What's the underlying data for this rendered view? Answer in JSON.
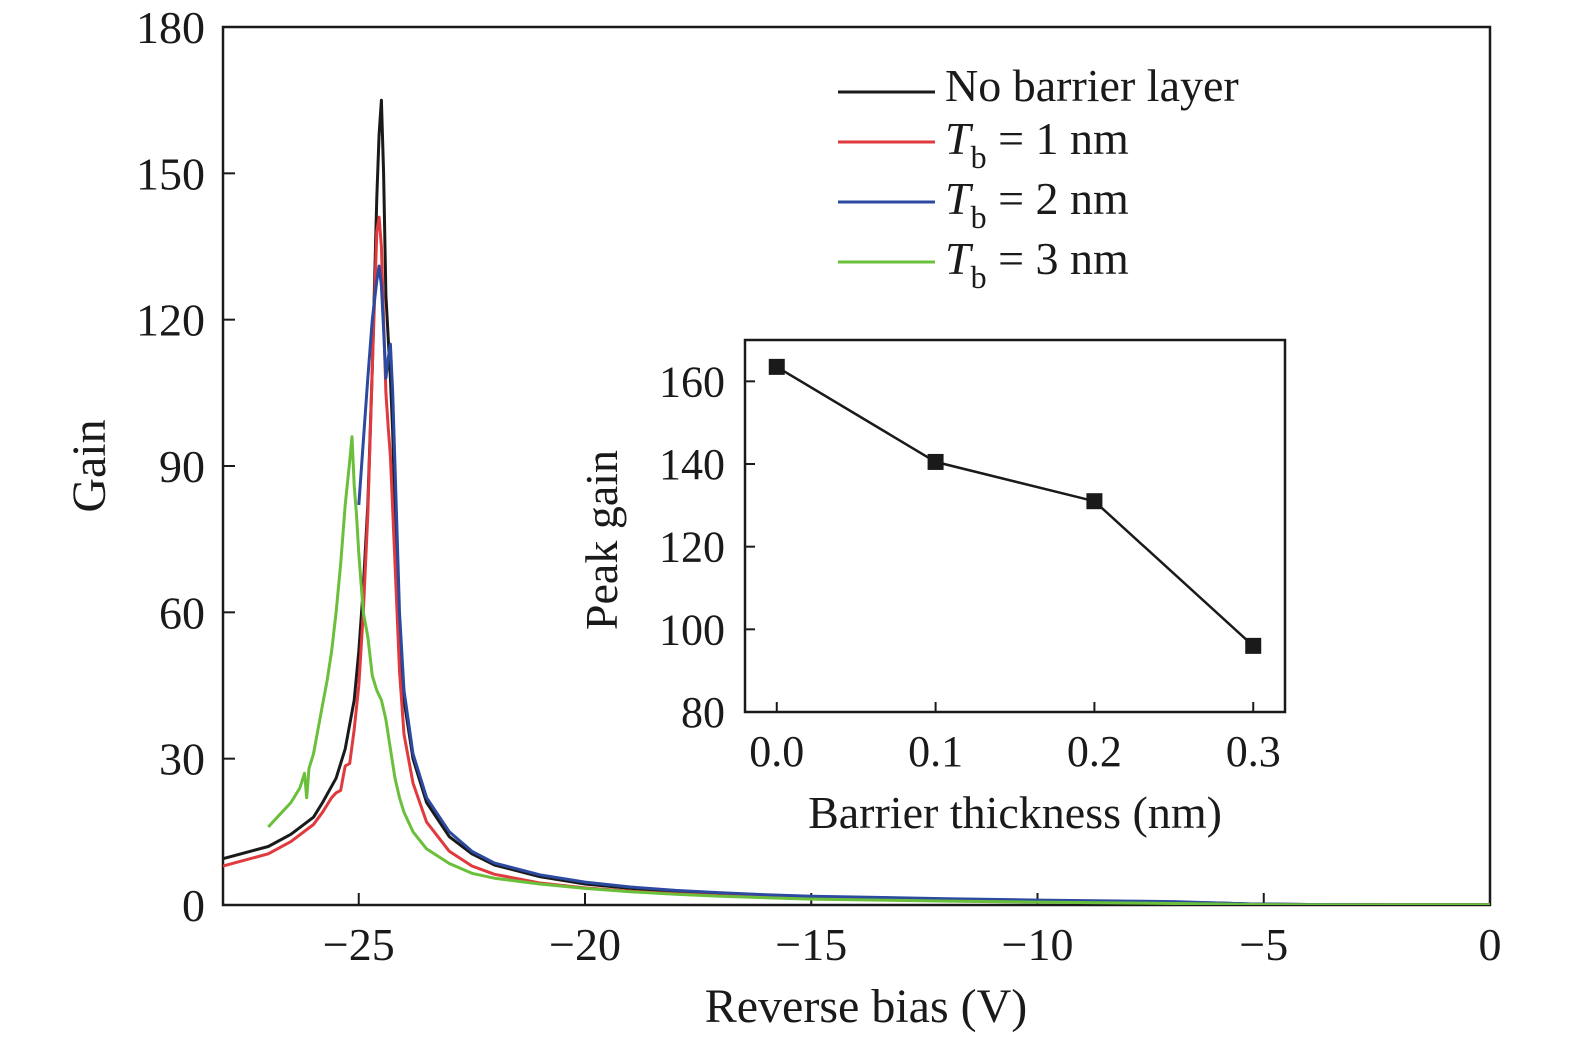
{
  "chart_data": [
    {
      "type": "line",
      "xlabel": "Reverse bias (V)",
      "ylabel": "Gain",
      "xlim": [
        -28,
        0
      ],
      "ylim": [
        0,
        180
      ],
      "xticks": [
        -25,
        -20,
        -15,
        -10,
        -5,
        0
      ],
      "xtick_labels": [
        "−25",
        "−20",
        "−15",
        "−10",
        "−5",
        "0"
      ],
      "yticks": [
        0,
        30,
        60,
        90,
        120,
        150,
        180
      ],
      "ytick_labels": [
        "0",
        "30",
        "60",
        "90",
        "120",
        "150",
        "180"
      ],
      "legend_position": "top-right",
      "series": [
        {
          "name": "No barrier layer",
          "color": "#1a1a1a",
          "x": [
            -28,
            -27,
            -26.5,
            -26,
            -25.8,
            -25.5,
            -25.3,
            -25.1,
            -25,
            -24.9,
            -24.8,
            -24.7,
            -24.6,
            -24.55,
            -24.5,
            -24.45,
            -24.4,
            -24.3,
            -24.25,
            -24.2,
            -24.1,
            -24,
            -23.8,
            -23.5,
            -23,
            -22.5,
            -22,
            -21,
            -20,
            -19,
            -18,
            -17,
            -16,
            -15,
            -12,
            -10,
            -8,
            -6,
            -5.3,
            -4,
            -2,
            0
          ],
          "y": [
            9.5,
            12,
            14.5,
            18,
            21,
            26,
            32,
            42,
            52,
            65,
            82,
            110,
            145,
            158,
            165,
            150,
            125,
            108,
            97,
            80,
            55,
            42,
            30,
            21,
            14,
            10.5,
            8.2,
            5.8,
            4.3,
            3.4,
            2.8,
            2.3,
            1.9,
            1.6,
            1.1,
            0.8,
            0.6,
            0.4,
            0.2,
            0.1,
            0.05,
            0.05
          ],
          "labels": {
            "name": "No barrier layer"
          }
        },
        {
          "name": "T_b = 1 nm",
          "color": "#e03a3e",
          "x": [
            -28,
            -27,
            -26.5,
            -26,
            -25.8,
            -25.6,
            -25.5,
            -25.4,
            -25.35,
            -25.3,
            -25.2,
            -25.1,
            -25,
            -24.9,
            -24.8,
            -24.7,
            -24.6,
            -24.55,
            -24.5,
            -24.45,
            -24.4,
            -24.35,
            -24.3,
            -24.2,
            -24.1,
            -24,
            -23.8,
            -23.5,
            -23,
            -22.5,
            -22,
            -21,
            -20,
            -19,
            -18,
            -17,
            -16,
            -15,
            -12,
            -10,
            -8,
            -6,
            -5.3,
            -4,
            -2,
            0
          ],
          "y": [
            8,
            10.5,
            13,
            16.5,
            19,
            22,
            23,
            23.5,
            26,
            28.5,
            29,
            36,
            45,
            60,
            80,
            110,
            138,
            141,
            135,
            120,
            105,
            98,
            92,
            70,
            48,
            35,
            25,
            17,
            11,
            8,
            6.3,
            4.5,
            3.5,
            2.8,
            2.3,
            1.9,
            1.6,
            1.3,
            0.9,
            0.7,
            0.5,
            0.3,
            0.15,
            0.1,
            0.05,
            0.05
          ],
          "labels": {
            "name": "T",
            "sub": "b",
            "rest": " = 1 nm"
          }
        },
        {
          "name": "T_b = 2 nm",
          "color": "#2b4aa0",
          "x": [
            -25,
            -24.9,
            -24.8,
            -24.7,
            -24.6,
            -24.55,
            -24.5,
            -24.45,
            -24.4,
            -24.35,
            -24.3,
            -24.25,
            -24.2,
            -24.1,
            -24,
            -23.8,
            -23.5,
            -23,
            -22.5,
            -22,
            -21,
            -20,
            -19,
            -18,
            -17,
            -16,
            -15,
            -12,
            -10,
            -8,
            -7,
            -6,
            -5.3,
            -4,
            -2,
            0
          ],
          "y": [
            82,
            95,
            108,
            120,
            128,
            131,
            127,
            118,
            108,
            112,
            115,
            105,
            90,
            60,
            44,
            31,
            22,
            15,
            11,
            8.6,
            6.2,
            4.7,
            3.7,
            3,
            2.5,
            2.1,
            1.8,
            1.3,
            1,
            0.8,
            0.7,
            0.4,
            0.2,
            0.1,
            0.05,
            0.05
          ],
          "labels": {
            "name": "T",
            "sub": "b",
            "rest": " = 2 nm"
          }
        },
        {
          "name": "T_b = 3 nm",
          "color": "#6abf3b",
          "x": [
            -27,
            -26.8,
            -26.5,
            -26.3,
            -26.2,
            -26.15,
            -26.1,
            -26,
            -25.9,
            -25.8,
            -25.7,
            -25.6,
            -25.5,
            -25.4,
            -25.3,
            -25.2,
            -25.15,
            -25.1,
            -25.05,
            -25,
            -24.9,
            -24.8,
            -24.7,
            -24.6,
            -24.5,
            -24.4,
            -24.3,
            -24.2,
            -24.1,
            -24,
            -23.8,
            -23.5,
            -23,
            -22.5,
            -22,
            -21,
            -20,
            -19,
            -18,
            -17,
            -16,
            -15,
            -12,
            -10,
            -8,
            -6,
            -5.3,
            -4,
            -2,
            0
          ],
          "y": [
            16,
            18,
            21,
            24,
            27,
            22,
            28,
            31,
            36,
            41,
            46,
            52,
            60,
            70,
            82,
            91,
            96,
            86,
            80,
            72,
            60,
            55,
            47,
            44,
            42,
            38,
            32,
            26,
            22,
            19,
            15,
            11.5,
            8.5,
            6.5,
            5.5,
            4.3,
            3.4,
            2.7,
            2.2,
            1.8,
            1.5,
            1.2,
            0.8,
            0.6,
            0.4,
            0.2,
            0.1,
            0.05,
            0.05,
            0.05
          ],
          "labels": {
            "name": "T",
            "sub": "b",
            "rest": " = 3 nm"
          }
        }
      ]
    },
    {
      "type": "line",
      "xlabel": "Barrier thickness (nm)",
      "ylabel": "Peak gain",
      "xlim": [
        -0.02,
        0.32
      ],
      "ylim": [
        80,
        170
      ],
      "xticks": [
        0.0,
        0.1,
        0.2,
        0.3
      ],
      "xtick_labels": [
        "0.0",
        "0.1",
        "0.2",
        "0.3"
      ],
      "yticks": [
        80,
        100,
        120,
        140,
        160
      ],
      "ytick_labels": [
        "80",
        "100",
        "120",
        "140",
        "160"
      ],
      "series": [
        {
          "color": "#1a1a1a",
          "marker": "square",
          "x": [
            0.0,
            0.1,
            0.2,
            0.3
          ],
          "y": [
            163.5,
            140.5,
            131,
            96
          ]
        }
      ]
    }
  ]
}
